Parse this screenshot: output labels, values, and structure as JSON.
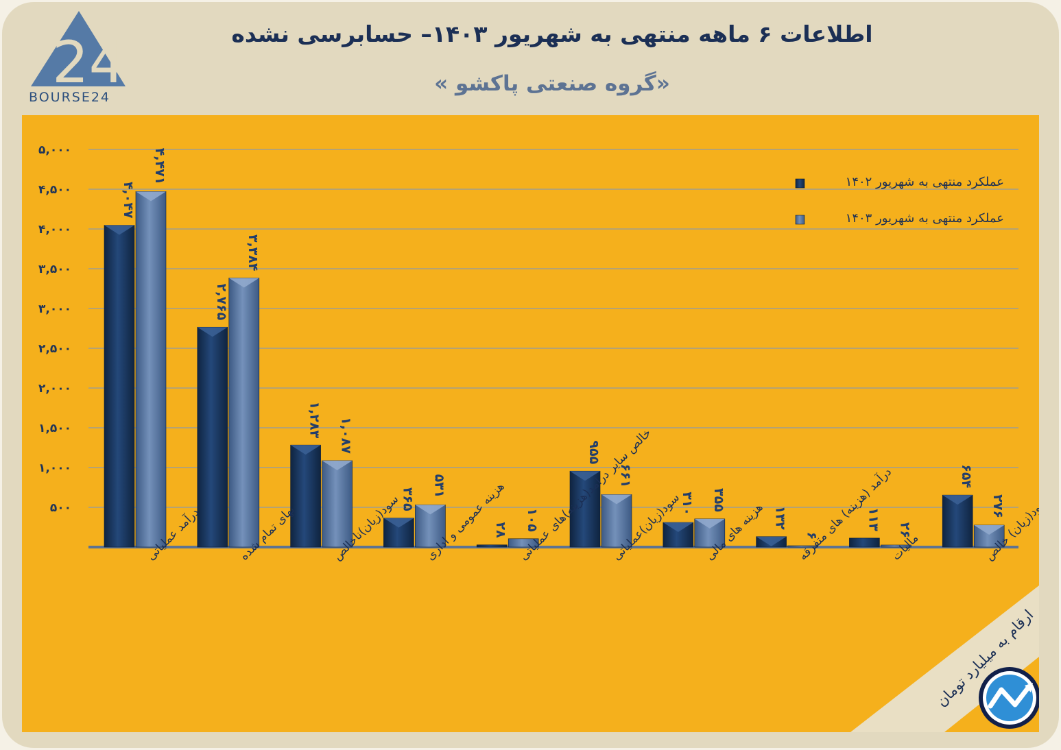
{
  "header": {
    "title": "اطلاعات ۶ ماهه منتهی به شهریور ۱۴۰۳– حسابرسی نشده",
    "subtitle": "«گروه صنعتی پاکشو »",
    "logo_text": "BOURSE24",
    "unit_note": "ارقام به میلیارد تومان"
  },
  "colors": {
    "background": "#e2d9bf",
    "plot_area": "#f5b01c",
    "series_1402": "#1d3c67",
    "series_1403": "#56749e"
  },
  "chart_data": {
    "type": "bar",
    "categories": [
      "درآمد عملیاتی",
      "بهای تمام شده",
      "سود(زیان)ناخالص",
      "هزینه عمومی و اداری",
      "خالص سایر درامد(هزینه)های عملیاتی",
      "سود(زیان)عملیاتی",
      "هزینه های مالی",
      "درآمد (هزینه) های متفرقه",
      "مالیات",
      "سود(زیان) خالص"
    ],
    "series": [
      {
        "name": "عملکرد منتهی به شهریور ۱۴۰۲",
        "values": [
          4047,
          2765,
          1283,
          365,
          28,
          955,
          310,
          132,
          113,
          654
        ],
        "labels": [
          "۴,۰۴۷",
          "۲,۷۶۵",
          "۱,۲۸۳",
          "۳۶۵",
          "۲۸",
          "۹۵۵",
          "۳۱۰",
          "۱۳۲",
          "۱۱۳",
          "۶۵۴"
        ]
      },
      {
        "name": "عملکرد منتهی به شهریور ۱۴۰۳",
        "values": [
          4471,
          3384,
          1087,
          531,
          105,
          661,
          355,
          6,
          26,
          276
        ],
        "labels": [
          "۴,۴۷۱",
          "۳,۳۸۴",
          "۱,۰۸۷",
          "۵۳۱",
          "۱۰۵",
          "۶۶۱",
          "۳۵۵",
          "۶",
          "۲۶",
          "۲۷۶"
        ]
      }
    ],
    "y_ticks": [
      "۵,۰۰۰",
      "۴,۵۰۰",
      "۴,۰۰۰",
      "۳,۵۰۰",
      "۳,۰۰۰",
      "۲,۵۰۰",
      "۲,۰۰۰",
      "۱,۵۰۰",
      "۱,۰۰۰",
      "۵۰۰"
    ],
    "y_tick_values": [
      5000,
      4500,
      4000,
      3500,
      3000,
      2500,
      2000,
      1500,
      1000,
      500
    ],
    "ylim": [
      0,
      5000
    ],
    "grid": true,
    "legend_position": "top-right"
  }
}
